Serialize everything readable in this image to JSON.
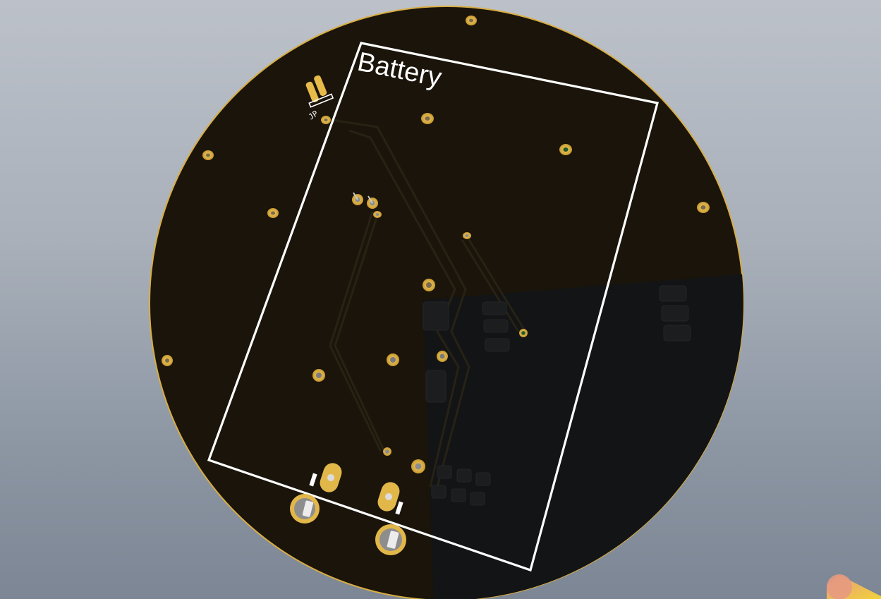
{
  "board": {
    "silkscreen_label": "Battery",
    "small_refdes": "JP",
    "colors": {
      "background_top": "#bcc1c9",
      "background_bottom": "#7c8694",
      "board_dark": "#1a140a",
      "board_shadow": "#121314",
      "pad_gold": "#e2b74a",
      "silkscreen": "#ffffff"
    }
  }
}
